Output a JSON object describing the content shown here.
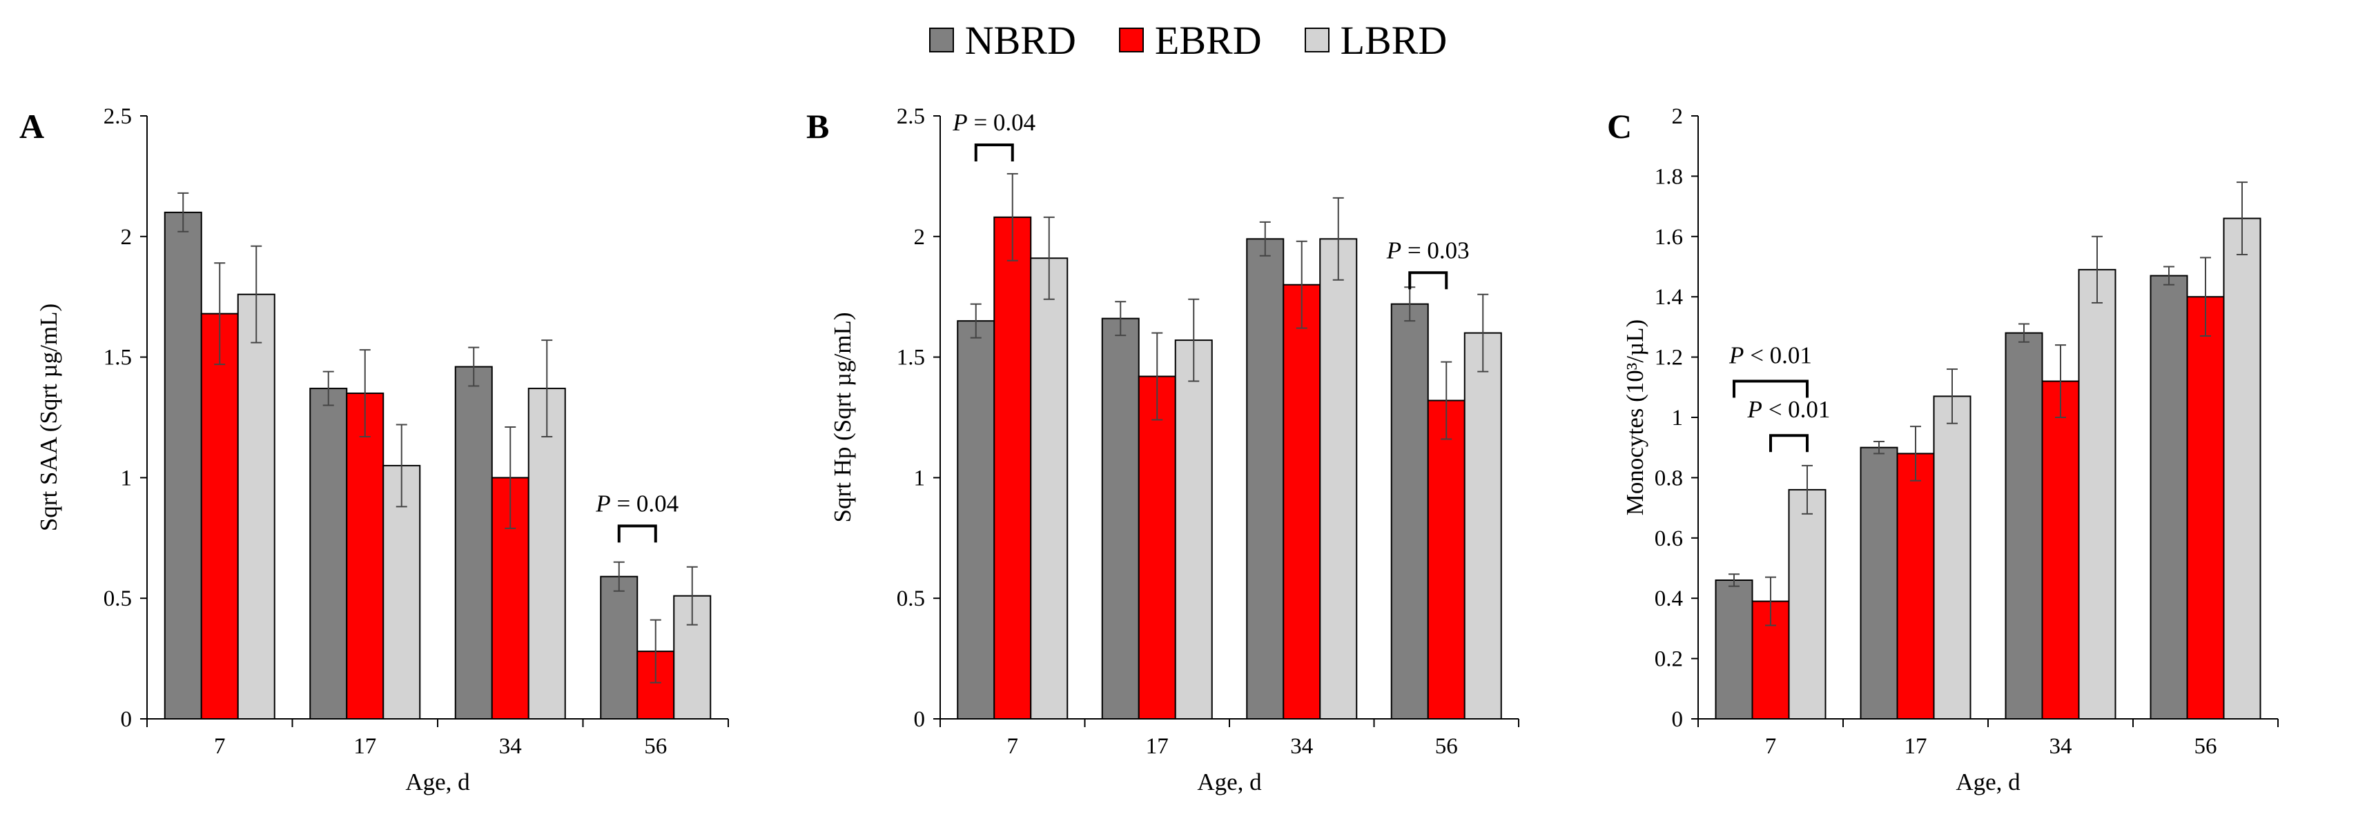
{
  "legend": [
    {
      "name": "NBRD",
      "color": "#808080"
    },
    {
      "name": "EBRD",
      "color": "#ff0000"
    },
    {
      "name": "LBRD",
      "color": "#d3d3d3"
    }
  ],
  "chart_data": [
    {
      "type": "bar",
      "panel": "A",
      "categories": [
        "7",
        "17",
        "34",
        "56"
      ],
      "xlabel": "Age, d",
      "ylabel": "Sqrt SAA (Sqrt µg/mL)",
      "ylim": [
        0,
        2.5
      ],
      "yticks": [
        "0",
        "0.5",
        "1",
        "1.5",
        "2",
        "2.5"
      ],
      "series": [
        {
          "name": "NBRD",
          "values": [
            2.1,
            1.37,
            1.46,
            0.59
          ],
          "errors": [
            0.08,
            0.07,
            0.08,
            0.06
          ]
        },
        {
          "name": "EBRD",
          "values": [
            1.68,
            1.35,
            1.0,
            0.28
          ],
          "errors": [
            0.21,
            0.18,
            0.21,
            0.13
          ]
        },
        {
          "name": "LBRD",
          "values": [
            1.76,
            1.05,
            1.37,
            0.51
          ],
          "errors": [
            0.2,
            0.17,
            0.2,
            0.12
          ]
        }
      ],
      "annotations": [
        {
          "text": "P = 0.04",
          "category": 3,
          "from": 0,
          "to": 1,
          "y": 0.8,
          "label_y": 0.86
        }
      ]
    },
    {
      "type": "bar",
      "panel": "B",
      "categories": [
        "7",
        "17",
        "34",
        "56"
      ],
      "xlabel": "Age, d",
      "ylabel": "Sqrt Hp (Sqrt µg/mL)",
      "ylim": [
        0,
        2.5
      ],
      "yticks": [
        "0",
        "0.5",
        "1",
        "1.5",
        "2",
        "2.5"
      ],
      "series": [
        {
          "name": "NBRD",
          "values": [
            1.65,
            1.66,
            1.99,
            1.72
          ],
          "errors": [
            0.07,
            0.07,
            0.07,
            0.07
          ]
        },
        {
          "name": "EBRD",
          "values": [
            2.08,
            1.42,
            1.8,
            1.32
          ],
          "errors": [
            0.18,
            0.18,
            0.18,
            0.16
          ]
        },
        {
          "name": "LBRD",
          "values": [
            1.91,
            1.57,
            1.99,
            1.6
          ],
          "errors": [
            0.17,
            0.17,
            0.17,
            0.16
          ]
        }
      ],
      "annotations": [
        {
          "text": "P = 0.04",
          "category": 0,
          "from": 0,
          "to": 1,
          "y": 2.38,
          "label_y": 2.44
        },
        {
          "text": "P = 0.03",
          "category": 3,
          "from": 0,
          "to": 1,
          "y": 1.85,
          "label_y": 1.91
        }
      ]
    },
    {
      "type": "bar",
      "panel": "C",
      "categories": [
        "7",
        "17",
        "34",
        "56"
      ],
      "xlabel": "Age, d",
      "ylabel": "Monocytes (10³/µL)",
      "ylim": [
        0,
        2
      ],
      "yticks": [
        "0",
        "0.2",
        "0.4",
        "0.6",
        "0.8",
        "1",
        "1.2",
        "1.4",
        "1.6",
        "1.8",
        "2"
      ],
      "series": [
        {
          "name": "NBRD",
          "values": [
            0.46,
            0.9,
            1.28,
            1.47
          ],
          "errors": [
            0.02,
            0.02,
            0.03,
            0.03
          ]
        },
        {
          "name": "EBRD",
          "values": [
            0.39,
            0.88,
            1.12,
            1.4
          ],
          "errors": [
            0.08,
            0.09,
            0.12,
            0.13
          ]
        },
        {
          "name": "LBRD",
          "values": [
            0.76,
            1.07,
            1.49,
            1.66
          ],
          "errors": [
            0.08,
            0.09,
            0.11,
            0.12
          ]
        }
      ],
      "annotations": [
        {
          "text": "P < 0.01",
          "category": 0,
          "from": 0,
          "to": 2,
          "y": 1.12,
          "label_y": 1.18
        },
        {
          "text": "P < 0.01",
          "category": 0,
          "from": 1,
          "to": 2,
          "y": 0.94,
          "label_y": 1.0
        }
      ]
    }
  ]
}
